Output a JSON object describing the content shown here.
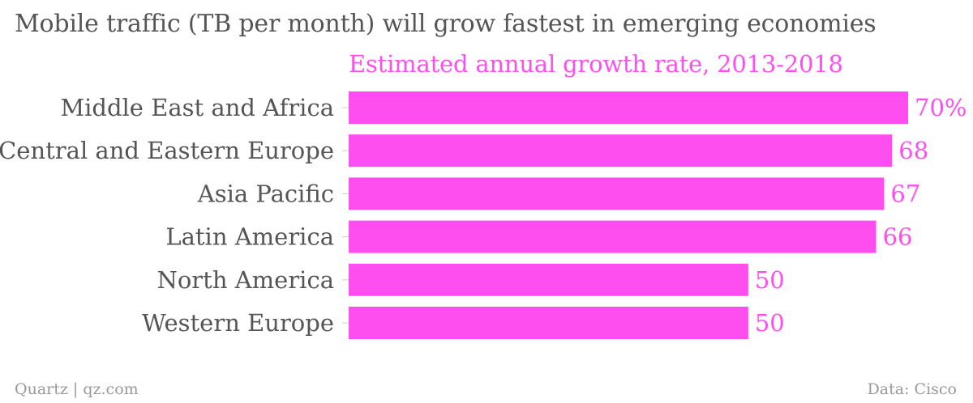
{
  "chart_data": {
    "type": "bar",
    "orientation": "horizontal",
    "title": "Mobile traffic (TB per month) will grow fastest in emerging economies",
    "subtitle": "Estimated annual growth rate, 2013-2018",
    "categories": [
      "Middle East and Africa",
      "Central and Eastern Europe",
      "Asia Pacific",
      "Latin America",
      "North America",
      "Western Europe"
    ],
    "values": [
      70,
      68,
      67,
      66,
      50,
      50
    ],
    "value_labels": [
      "70%",
      "68",
      "67",
      "66",
      "50",
      "50"
    ],
    "xlim": [
      0,
      70
    ],
    "grid": false,
    "bar_color": "#ff4ef0",
    "label_color": "#ff4ef0"
  },
  "footer": {
    "source_left": "Quartz | qz.com",
    "source_right": "Data: Cisco"
  }
}
